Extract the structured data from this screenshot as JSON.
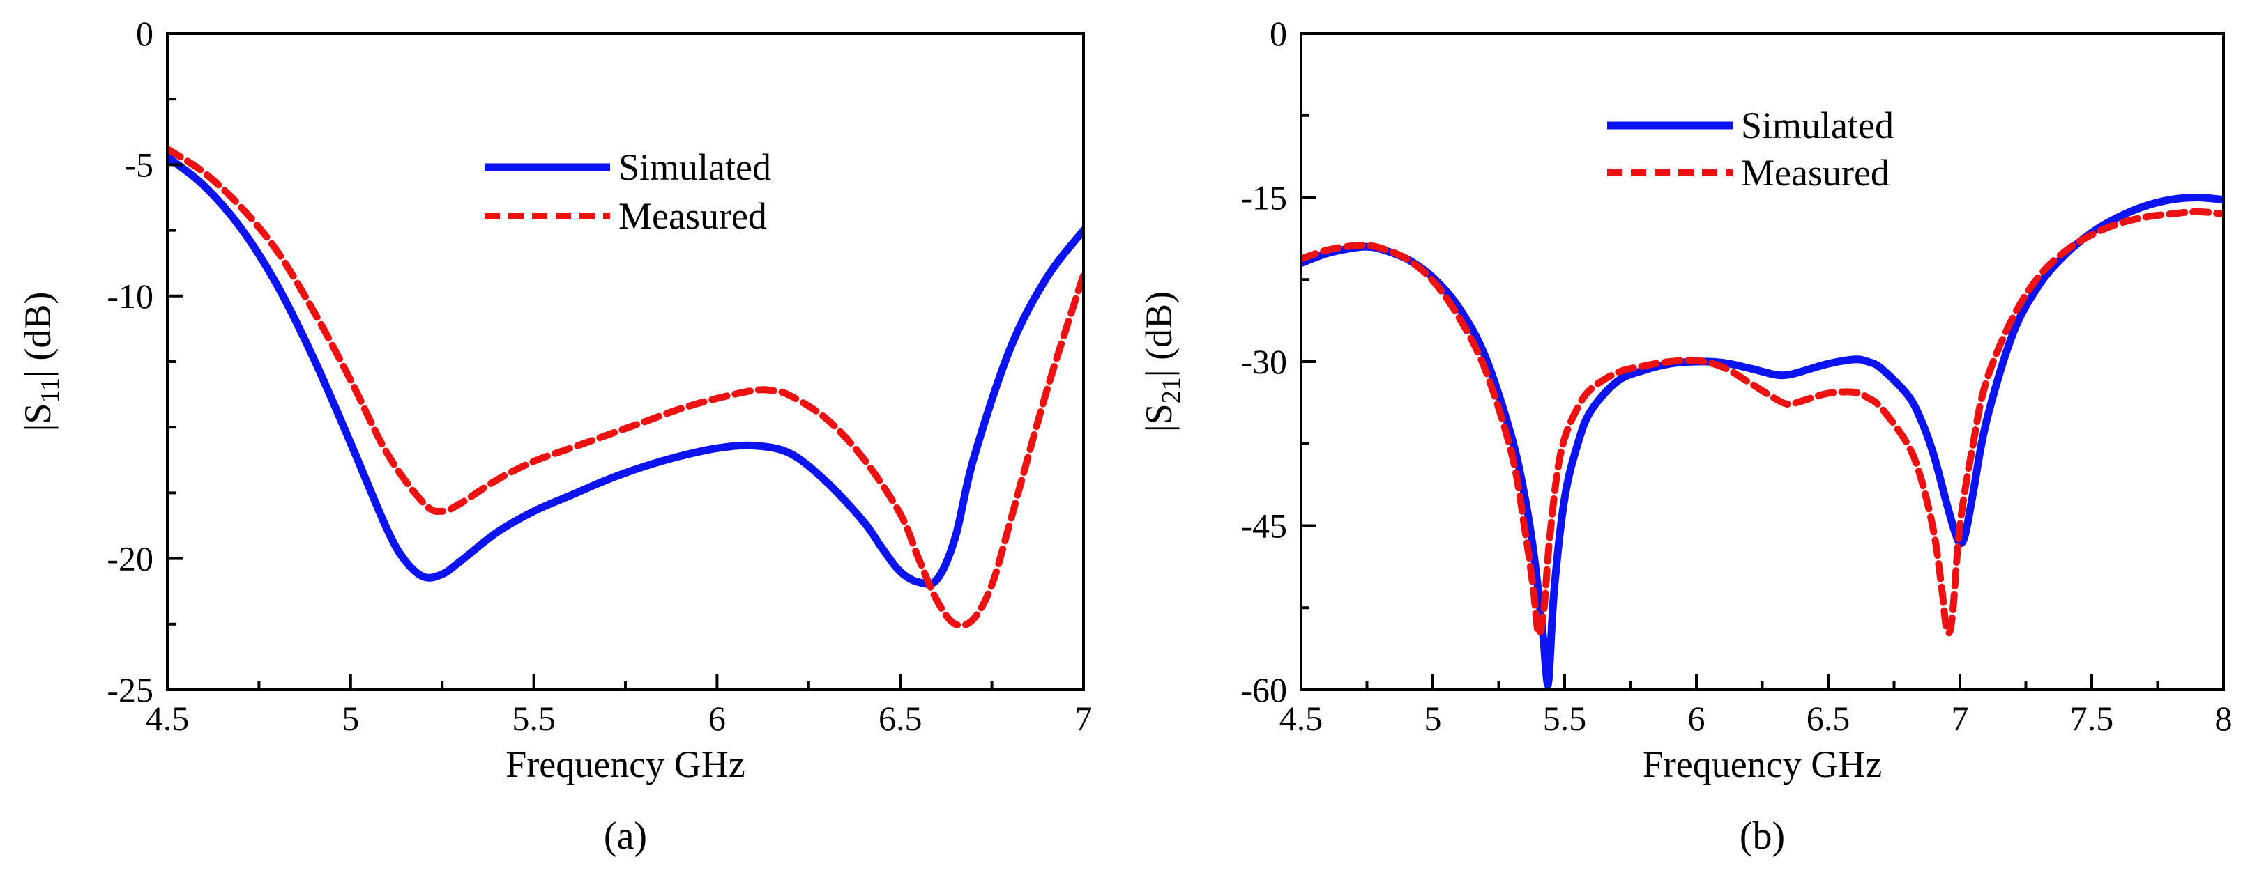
{
  "chart_data": [
    {
      "type": "line",
      "panel": "a",
      "caption": "(a)",
      "title": "",
      "xlabel": "Frequency GHz",
      "ylabel_main": "|S",
      "ylabel_sub": "11",
      "ylabel_tail": "| (dB)",
      "xlim": [
        4.5,
        7
      ],
      "ylim": [
        -25,
        0
      ],
      "xticks": [
        4.5,
        5,
        5.5,
        6,
        6.5,
        7
      ],
      "xtick_labels": [
        "4.5",
        "5",
        "5.5",
        "6",
        "6.5",
        "7"
      ],
      "yticks": [
        0,
        -5,
        -10,
        -20,
        -25
      ],
      "ytick_labels": [
        "0",
        "-5",
        "-10",
        "-20",
        "-25"
      ],
      "minor_yticks": [
        -2.5,
        -7.5,
        -12.5,
        -15,
        -17.5,
        -22.5
      ],
      "minor_xticks": [
        4.75,
        5.25,
        5.75,
        6.25,
        6.75
      ],
      "grid": false,
      "legend_position": "top-center",
      "series": [
        {
          "name": "Simulated",
          "color": "#0b14f0",
          "style": "solid",
          "x": [
            4.5,
            4.6,
            4.7,
            4.8,
            4.9,
            5.0,
            5.1,
            5.15,
            5.2,
            5.25,
            5.3,
            5.4,
            5.5,
            5.6,
            5.7,
            5.8,
            5.9,
            6.0,
            6.1,
            6.2,
            6.3,
            6.4,
            6.45,
            6.5,
            6.55,
            6.6,
            6.65,
            6.7,
            6.8,
            6.9,
            7.0
          ],
          "y": [
            -4.7,
            -5.8,
            -7.4,
            -9.6,
            -12.4,
            -15.6,
            -18.9,
            -20.1,
            -20.7,
            -20.6,
            -20.1,
            -19.0,
            -18.2,
            -17.6,
            -17.0,
            -16.5,
            -16.1,
            -15.8,
            -15.7,
            -16.0,
            -17.1,
            -18.6,
            -19.6,
            -20.5,
            -20.9,
            -20.8,
            -19.2,
            -16.2,
            -12.0,
            -9.3,
            -7.5
          ]
        },
        {
          "name": "Measured",
          "color": "#ee1111",
          "style": "dashed",
          "x": [
            4.5,
            4.6,
            4.7,
            4.8,
            4.9,
            5.0,
            5.1,
            5.2,
            5.25,
            5.3,
            5.4,
            5.5,
            5.6,
            5.7,
            5.8,
            5.9,
            6.0,
            6.1,
            6.15,
            6.2,
            6.3,
            6.4,
            6.5,
            6.55,
            6.6,
            6.65,
            6.7,
            6.75,
            6.8,
            6.9,
            7.0
          ],
          "y": [
            -4.4,
            -5.3,
            -6.6,
            -8.3,
            -10.6,
            -13.2,
            -16.0,
            -17.9,
            -18.2,
            -17.9,
            -17.0,
            -16.3,
            -15.8,
            -15.3,
            -14.8,
            -14.3,
            -13.9,
            -13.6,
            -13.6,
            -13.8,
            -14.7,
            -16.2,
            -18.3,
            -20.0,
            -21.6,
            -22.5,
            -22.3,
            -21.0,
            -18.6,
            -13.6,
            -9.2
          ]
        }
      ]
    },
    {
      "type": "line",
      "panel": "b",
      "caption": "(b)",
      "title": "",
      "xlabel": "Frequency GHz",
      "ylabel_main": "|S",
      "ylabel_sub": "21",
      "ylabel_tail": "| (dB)",
      "xlim": [
        4.5,
        8
      ],
      "ylim": [
        -60,
        0
      ],
      "xticks": [
        4.5,
        5,
        5.5,
        6,
        6.5,
        7,
        7.5,
        8
      ],
      "xtick_labels": [
        "4.5",
        "5",
        "5.5",
        "6",
        "6.5",
        "7",
        "7.5",
        "8"
      ],
      "yticks": [
        0,
        -15,
        -30,
        -45,
        -60
      ],
      "ytick_labels": [
        "0",
        "-15",
        "-30",
        "-45",
        "-60"
      ],
      "minor_yticks": [
        -7.5,
        -22.5,
        -37.5,
        -52.5
      ],
      "minor_xticks": [
        4.75,
        5.25,
        5.75,
        6.25,
        6.75,
        7.25,
        7.75
      ],
      "grid": false,
      "legend_position": "top-center",
      "series": [
        {
          "name": "Simulated",
          "color": "#0b14f0",
          "style": "solid",
          "x": [
            4.5,
            4.6,
            4.7,
            4.75,
            4.8,
            4.9,
            5.0,
            5.1,
            5.2,
            5.3,
            5.35,
            5.38,
            5.4,
            5.42,
            5.43,
            5.44,
            5.46,
            5.5,
            5.55,
            5.6,
            5.7,
            5.8,
            5.9,
            6.0,
            6.1,
            6.2,
            6.3,
            6.35,
            6.4,
            6.5,
            6.6,
            6.65,
            6.7,
            6.8,
            6.85,
            6.9,
            6.95,
            6.98,
            7.0,
            7.02,
            7.05,
            7.1,
            7.2,
            7.3,
            7.4,
            7.5,
            7.6,
            7.7,
            7.8,
            7.9,
            8.0
          ],
          "y": [
            -21.0,
            -20.1,
            -19.6,
            -19.5,
            -19.7,
            -20.6,
            -22.3,
            -25.1,
            -29.6,
            -37.0,
            -42.5,
            -47.0,
            -51.0,
            -55.5,
            -58.5,
            -59.0,
            -51.0,
            -42.5,
            -37.5,
            -34.5,
            -31.8,
            -30.8,
            -30.2,
            -30.0,
            -30.1,
            -30.6,
            -31.2,
            -31.2,
            -30.9,
            -30.2,
            -29.8,
            -30.0,
            -30.6,
            -33.0,
            -35.2,
            -38.5,
            -43.0,
            -45.5,
            -46.6,
            -45.8,
            -42.0,
            -35.5,
            -27.5,
            -23.0,
            -20.2,
            -18.2,
            -16.8,
            -15.8,
            -15.2,
            -15.0,
            -15.2
          ]
        },
        {
          "name": "Measured",
          "color": "#ee1111",
          "style": "dashed",
          "x": [
            4.5,
            4.6,
            4.7,
            4.75,
            4.8,
            4.9,
            5.0,
            5.1,
            5.2,
            5.3,
            5.35,
            5.38,
            5.4,
            5.42,
            5.44,
            5.47,
            5.5,
            5.55,
            5.6,
            5.7,
            5.8,
            5.9,
            6.0,
            6.1,
            6.2,
            6.3,
            6.35,
            6.4,
            6.5,
            6.6,
            6.65,
            6.7,
            6.8,
            6.85,
            6.9,
            6.93,
            6.95,
            6.97,
            7.0,
            7.05,
            7.1,
            7.2,
            7.3,
            7.4,
            7.5,
            7.6,
            7.7,
            7.8,
            7.9,
            8.0
          ],
          "y": [
            -20.6,
            -19.8,
            -19.4,
            -19.4,
            -19.6,
            -20.6,
            -22.6,
            -26.0,
            -30.8,
            -38.5,
            -45.5,
            -50.5,
            -54.8,
            -53.0,
            -47.0,
            -40.5,
            -37.0,
            -34.2,
            -32.5,
            -31.0,
            -30.4,
            -30.0,
            -29.9,
            -30.5,
            -31.9,
            -33.4,
            -33.9,
            -33.6,
            -32.9,
            -32.8,
            -33.3,
            -34.2,
            -37.5,
            -40.5,
            -45.5,
            -50.5,
            -54.5,
            -53.5,
            -45.0,
            -37.5,
            -31.8,
            -26.0,
            -22.2,
            -19.9,
            -18.4,
            -17.4,
            -16.8,
            -16.5,
            -16.3,
            -16.5
          ]
        }
      ]
    }
  ]
}
